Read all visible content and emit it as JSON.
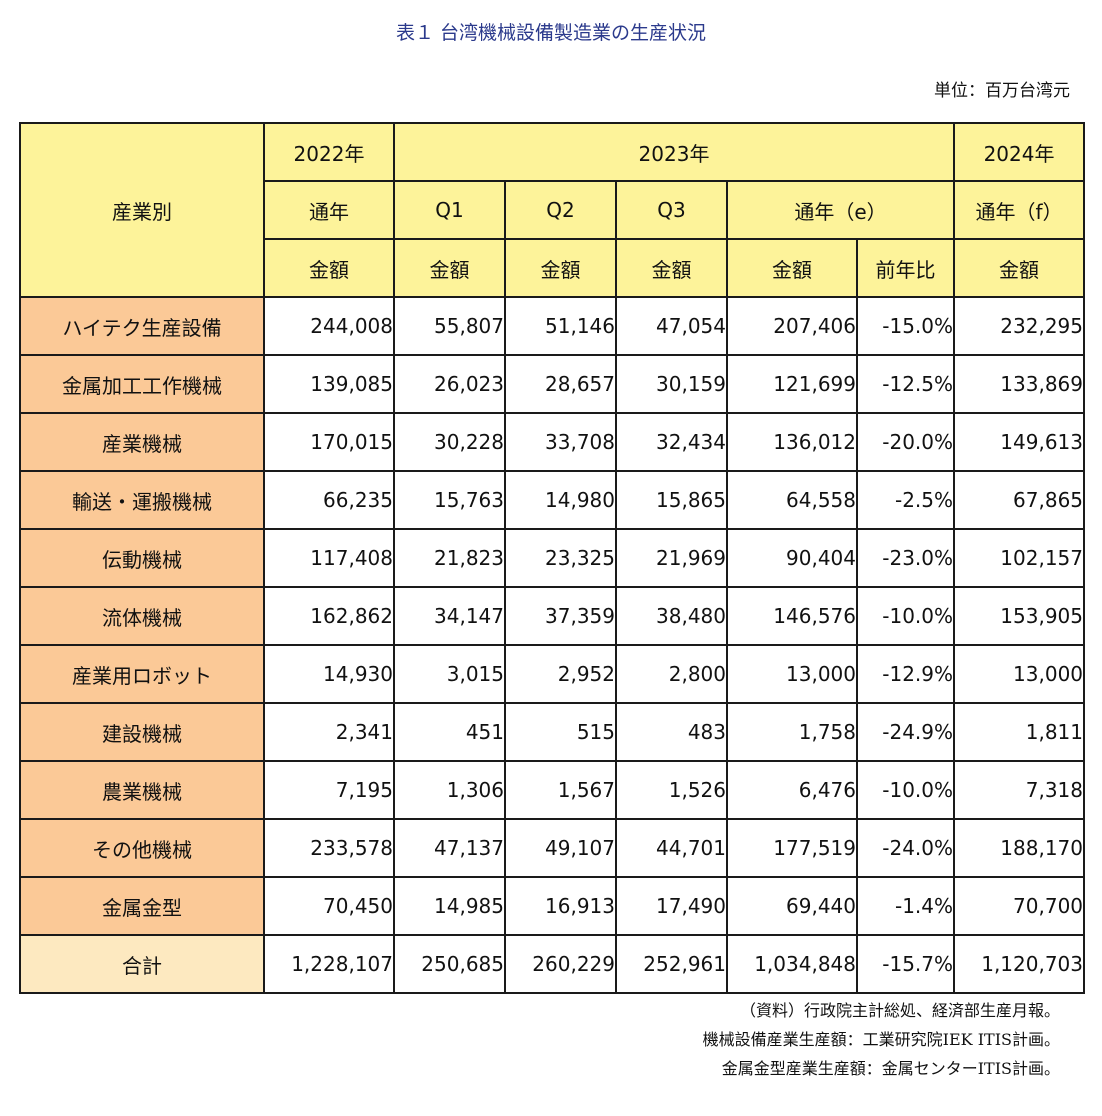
{
  "title": "表１ 台湾機械設備製造業の生産状況",
  "unit": "単位：百万台湾元",
  "header": {
    "category": "産業別",
    "y2022": "2022年",
    "y2023": "2023年",
    "y2024": "2024年",
    "full_year": "通年",
    "q1": "Q1",
    "q2": "Q2",
    "q3": "Q3",
    "full_year_e": "通年（e）",
    "full_year_f": "通年（f）",
    "amount": "金額",
    "yoy": "前年比"
  },
  "rows": [
    {
      "name": "ハイテク生産設備",
      "v2022": "244,008",
      "q1": "55,807",
      "q2": "51,146",
      "q3": "47,054",
      "y2023": "207,406",
      "yoy": "-15.0%",
      "v2024": "232,295"
    },
    {
      "name": "金属加工工作機械",
      "v2022": "139,085",
      "q1": "26,023",
      "q2": "28,657",
      "q3": "30,159",
      "y2023": "121,699",
      "yoy": "-12.5%",
      "v2024": "133,869"
    },
    {
      "name": "産業機械",
      "v2022": "170,015",
      "q1": "30,228",
      "q2": "33,708",
      "q3": "32,434",
      "y2023": "136,012",
      "yoy": "-20.0%",
      "v2024": "149,613"
    },
    {
      "name": "輸送・運搬機械",
      "v2022": "66,235",
      "q1": "15,763",
      "q2": "14,980",
      "q3": "15,865",
      "y2023": "64,558",
      "yoy": "-2.5%",
      "v2024": "67,865"
    },
    {
      "name": "伝動機械",
      "v2022": "117,408",
      "q1": "21,823",
      "q2": "23,325",
      "q3": "21,969",
      "y2023": "90,404",
      "yoy": "-23.0%",
      "v2024": "102,157"
    },
    {
      "name": "流体機械",
      "v2022": "162,862",
      "q1": "34,147",
      "q2": "37,359",
      "q3": "38,480",
      "y2023": "146,576",
      "yoy": "-10.0%",
      "v2024": "153,905"
    },
    {
      "name": "産業用ロボット",
      "v2022": "14,930",
      "q1": "3,015",
      "q2": "2,952",
      "q3": "2,800",
      "y2023": "13,000",
      "yoy": "-12.9%",
      "v2024": "13,000"
    },
    {
      "name": "建設機械",
      "v2022": "2,341",
      "q1": "451",
      "q2": "515",
      "q3": "483",
      "y2023": "1,758",
      "yoy": "-24.9%",
      "v2024": "1,811"
    },
    {
      "name": "農業機械",
      "v2022": "7,195",
      "q1": "1,306",
      "q2": "1,567",
      "q3": "1,526",
      "y2023": "6,476",
      "yoy": "-10.0%",
      "v2024": "7,318"
    },
    {
      "name": "その他機械",
      "v2022": "233,578",
      "q1": "47,137",
      "q2": "49,107",
      "q3": "44,701",
      "y2023": "177,519",
      "yoy": "-24.0%",
      "v2024": "188,170"
    },
    {
      "name": "金属金型",
      "v2022": "70,450",
      "q1": "14,985",
      "q2": "16,913",
      "q3": "17,490",
      "y2023": "69,440",
      "yoy": "-1.4%",
      "v2024": "70,700"
    }
  ],
  "total": {
    "name": "合計",
    "v2022": "1,228,107",
    "q1": "250,685",
    "q2": "260,229",
    "q3": "252,961",
    "y2023": "1,034,848",
    "yoy": "-15.7%",
    "v2024": "1,120,703"
  },
  "notes": [
    "（資料）行政院主計総処、経済部生産月報。",
    "機械設備産業生産額：工業研究院IEK ITIS計画。",
    "金属金型産業生産額：金属センターITIS計画。"
  ],
  "colors": {
    "header_bg": "#fdf39a",
    "row_head_bg": "#fbc997",
    "total_head_bg": "#fde9c0",
    "title_color": "#2b3a8c"
  }
}
